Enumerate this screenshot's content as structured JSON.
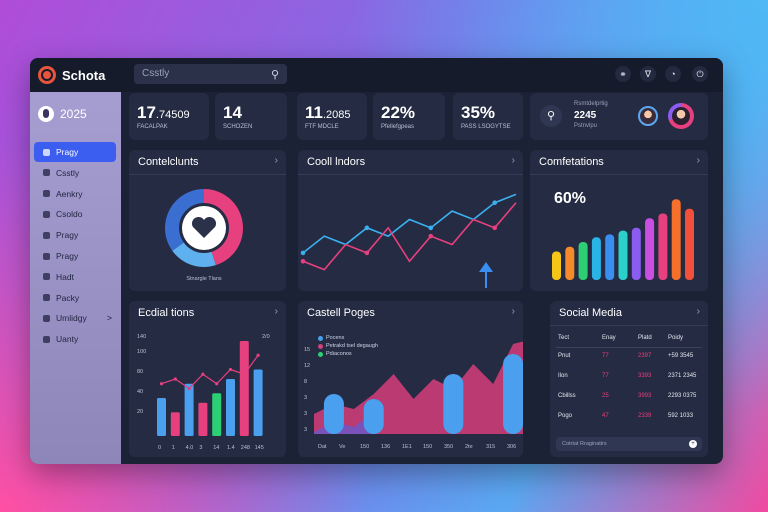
{
  "app": {
    "brand": "Schota",
    "search_placeholder": "Csstly"
  },
  "topbar": {
    "icons": [
      "headset-icon",
      "filter-icon",
      "globe-icon",
      "power-icon"
    ]
  },
  "sidebar": {
    "year": "2025",
    "items": [
      {
        "label": "Pragy",
        "active": true
      },
      {
        "label": "Csstly"
      },
      {
        "label": "Aenkry"
      },
      {
        "label": "Csoldo"
      },
      {
        "label": "Pragy"
      },
      {
        "label": "Pragy"
      },
      {
        "label": "Hadt"
      },
      {
        "label": "Packy"
      },
      {
        "label": "Umlidgy",
        "chevron": ">"
      },
      {
        "label": "Uanty"
      }
    ]
  },
  "stats": [
    {
      "value": "17",
      "sub": ".74509",
      "label": "FACALPAK"
    },
    {
      "value": "14",
      "sub": "",
      "label": "SCHOZEN"
    },
    {
      "value": "11",
      "sub": ".2085",
      "label": "FTF MDCLE"
    },
    {
      "value": "22%",
      "sub": "",
      "label": "Pfellefgpeas"
    },
    {
      "value": "35%",
      "sub": "",
      "label": "PASS LSOGYTSE"
    }
  ],
  "profile": {
    "line1": "Rsmtdelprtig",
    "value": "2245",
    "line3": "Pstnvlpu"
  },
  "panels": {
    "donut": {
      "title": "Contelclunts",
      "caption": "Stnargle Tlans",
      "segments": [
        0.45,
        0.2,
        0.35
      ],
      "colors": [
        "#e6407e",
        "#5eb0ee",
        "#3a6ed0"
      ]
    },
    "line": {
      "title": "Cooll lndors"
    },
    "bars": {
      "title": "Comfetations",
      "percent": "60%"
    },
    "hist": {
      "title": "Ecdial tions",
      "ytop": "140",
      "yright": "2/0",
      "yticks": [
        "100",
        "80",
        "40",
        "20"
      ],
      "xlabels": [
        "0",
        "1",
        "4.0",
        "3",
        "14",
        "1.4",
        "248",
        "145"
      ]
    },
    "area": {
      "title": "Castell Poges",
      "legend": [
        "Pocens",
        "Petrakd tsel degaugh",
        "Pdiaconos"
      ],
      "legend_colors": [
        "#4aa0ee",
        "#d2417a",
        "#2ccf74"
      ],
      "yticks": [
        "15",
        "12",
        "8",
        "3",
        "3",
        "3"
      ],
      "xlabels": [
        "Dat",
        "Ve",
        "150",
        "136",
        "1E1",
        "150",
        "350",
        "2te",
        "315",
        "306"
      ]
    },
    "social": {
      "title": "Social Media",
      "headers": [
        "Tect",
        "Enay",
        "Platd",
        "Poidy"
      ],
      "rows": [
        [
          "Pnut",
          "77",
          "2397",
          "+59 3545"
        ],
        [
          "Ilon",
          "77",
          "3393",
          "2371 2345"
        ],
        [
          "Cbillss",
          "25",
          "3993",
          "2293 0375"
        ],
        [
          "Pogo",
          "47",
          "2339",
          "592 1033"
        ]
      ],
      "footer": "Cotrtat Rraginatirs"
    }
  },
  "chart_data": [
    {
      "type": "pie",
      "title": "Contelclunts",
      "values": [
        45,
        20,
        35
      ]
    },
    {
      "type": "line",
      "title": "Cooll lndors",
      "series": [
        {
          "values": [
            3,
            5,
            4,
            6,
            5,
            7,
            6,
            8,
            7,
            9,
            10
          ]
        },
        {
          "values": [
            2,
            1,
            4,
            3,
            6,
            2,
            5,
            4,
            7,
            6,
            9
          ]
        }
      ]
    },
    {
      "type": "bar",
      "title": "Comfetations",
      "values": [
        30,
        35,
        40,
        45,
        48,
        52,
        55,
        65,
        70,
        85,
        75
      ],
      "colors": [
        "#f5c617",
        "#f58a2a",
        "#2ccf74",
        "#2ab4e6",
        "#3a8ef0",
        "#2ad0c9",
        "#8b5cf0",
        "#c94fe0",
        "#e6407e",
        "#f5702a",
        "#f2503a"
      ]
    },
    {
      "type": "bar",
      "title": "Ecdial tions",
      "values": [
        40,
        25,
        55,
        35,
        45,
        60,
        100,
        70
      ],
      "colors": [
        "#4aa0ee",
        "#e6407e",
        "#4aa0ee",
        "#e6407e",
        "#2ccf74",
        "#4aa0ee",
        "#e6407e",
        "#4aa0ee"
      ],
      "line": [
        55,
        60,
        50,
        65,
        55,
        70,
        65,
        85
      ]
    },
    {
      "type": "area",
      "title": "Castell Poges",
      "series": [
        {
          "values": [
            20,
            30,
            25,
            40,
            60,
            35,
            55,
            45,
            70,
            50,
            90,
            95
          ]
        }
      ],
      "bars": [
        0,
        40,
        0,
        35,
        0,
        0,
        0,
        60,
        0,
        0,
        80,
        0
      ]
    }
  ]
}
